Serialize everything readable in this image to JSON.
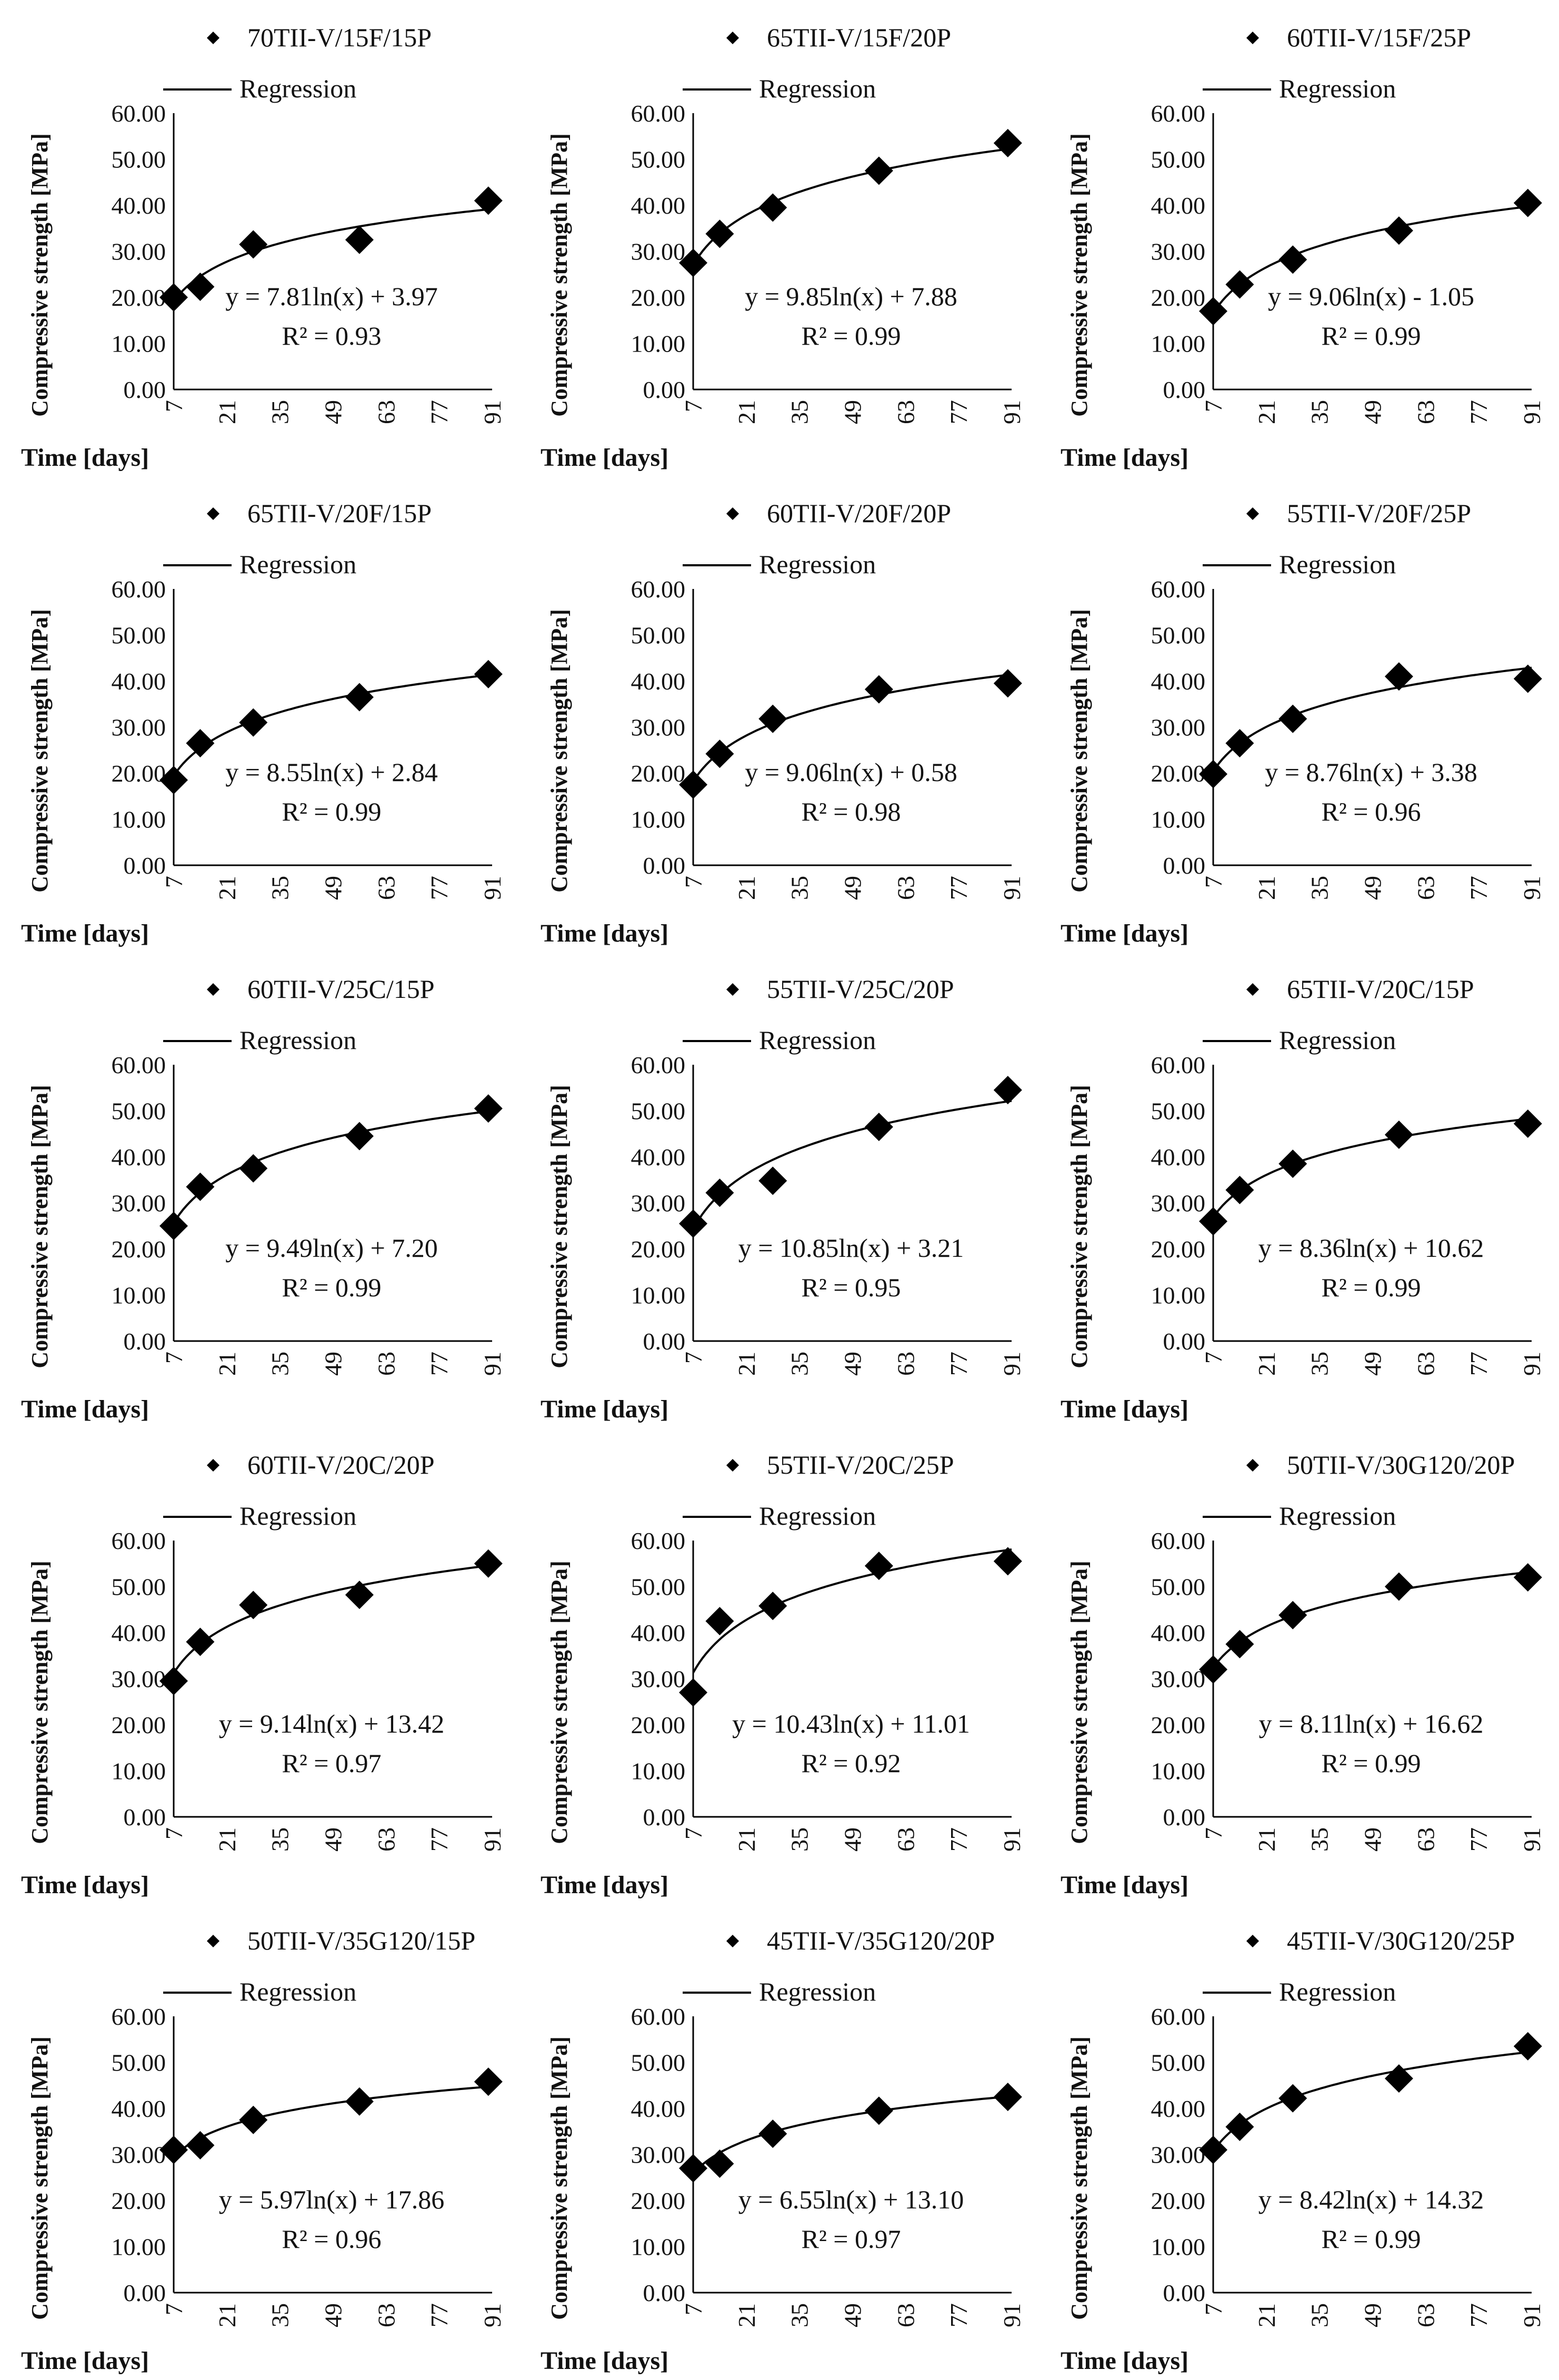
{
  "axes": {
    "ylabel": "Compressive strength [MPa]",
    "xlabel": "Time [days]",
    "yticks": [
      "0.00",
      "10.00",
      "20.00",
      "30.00",
      "40.00",
      "50.00",
      "60.00"
    ],
    "xticks": [
      "7",
      "21",
      "35",
      "49",
      "63",
      "77",
      "91"
    ],
    "regression_label": "Regression"
  },
  "colors": {
    "marker": "#000000",
    "line": "#000000",
    "axis": "#000000"
  },
  "chart_data": [
    {
      "type": "scatter",
      "title": "70TII-V/15F/15P",
      "x": [
        7,
        14,
        28,
        56,
        90
      ],
      "y": [
        20.0,
        22.3,
        31.5,
        32.5,
        41.0
      ],
      "equation": "y = 7.81ln(x) + 3.97",
      "r2": "R² = 0.93",
      "reg": {
        "a": 7.81,
        "b": 3.97
      },
      "xlim": [
        7,
        91
      ],
      "ylim": [
        0,
        60
      ]
    },
    {
      "type": "scatter",
      "title": "65TII-V/15F/20P",
      "x": [
        7,
        14,
        28,
        56,
        90
      ],
      "y": [
        27.5,
        33.8,
        39.5,
        47.5,
        53.5
      ],
      "equation": "y = 9.85ln(x) + 7.88",
      "r2": "R² = 0.99",
      "reg": {
        "a": 9.85,
        "b": 7.88
      },
      "xlim": [
        7,
        91
      ],
      "ylim": [
        0,
        60
      ]
    },
    {
      "type": "scatter",
      "title": "60TII-V/15F/25P",
      "x": [
        7,
        14,
        28,
        56,
        90
      ],
      "y": [
        17.0,
        22.8,
        28.2,
        34.5,
        40.5
      ],
      "equation": "y = 9.06ln(x) - 1.05",
      "r2": "R² = 0.99",
      "reg": {
        "a": 9.06,
        "b": -1.05
      },
      "xlim": [
        7,
        91
      ],
      "ylim": [
        0,
        60
      ]
    },
    {
      "type": "scatter",
      "title": "65TII-V/20F/15P",
      "x": [
        7,
        14,
        28,
        56,
        90
      ],
      "y": [
        18.5,
        26.5,
        31.0,
        36.5,
        41.5
      ],
      "equation": "y = 8.55ln(x) + 2.84",
      "r2": "R² = 0.99",
      "reg": {
        "a": 8.55,
        "b": 2.84
      },
      "xlim": [
        7,
        91
      ],
      "ylim": [
        0,
        60
      ]
    },
    {
      "type": "scatter",
      "title": "60TII-V/20F/20P",
      "x": [
        7,
        14,
        28,
        56,
        90
      ],
      "y": [
        17.5,
        24.2,
        31.8,
        38.2,
        39.5
      ],
      "equation": "y = 9.06ln(x) + 0.58",
      "r2": "R² = 0.98",
      "reg": {
        "a": 9.06,
        "b": 0.58
      },
      "xlim": [
        7,
        91
      ],
      "ylim": [
        0,
        60
      ]
    },
    {
      "type": "scatter",
      "title": "55TII-V/20F/25P",
      "x": [
        7,
        14,
        28,
        56,
        90
      ],
      "y": [
        19.8,
        26.5,
        31.8,
        41.0,
        40.5
      ],
      "equation": "y = 8.76ln(x) + 3.38",
      "r2": "R² = 0.96",
      "reg": {
        "a": 8.76,
        "b": 3.38
      },
      "xlim": [
        7,
        91
      ],
      "ylim": [
        0,
        60
      ]
    },
    {
      "type": "scatter",
      "title": "60TII-V/25C/15P",
      "x": [
        7,
        14,
        28,
        56,
        90
      ],
      "y": [
        25.0,
        33.5,
        37.5,
        44.5,
        50.5
      ],
      "equation": "y = 9.49ln(x) + 7.20",
      "r2": "R² = 0.99",
      "reg": {
        "a": 9.49,
        "b": 7.2
      },
      "xlim": [
        7,
        91
      ],
      "ylim": [
        0,
        60
      ]
    },
    {
      "type": "scatter",
      "title": "55TII-V/25C/20P",
      "x": [
        7,
        14,
        28,
        56,
        90
      ],
      "y": [
        25.5,
        32.2,
        34.8,
        46.5,
        54.5
      ],
      "equation": "y = 10.85ln(x) + 3.21",
      "r2": "R² = 0.95",
      "reg": {
        "a": 10.85,
        "b": 3.21
      },
      "xlim": [
        7,
        91
      ],
      "ylim": [
        0,
        60
      ]
    },
    {
      "type": "scatter",
      "title": "65TII-V/20C/15P",
      "x": [
        7,
        14,
        28,
        56,
        90
      ],
      "y": [
        26.0,
        32.8,
        38.5,
        44.8,
        47.2
      ],
      "equation": "y = 8.36ln(x) + 10.62",
      "r2": "R² = 0.99",
      "reg": {
        "a": 8.36,
        "b": 10.62
      },
      "xlim": [
        7,
        91
      ],
      "ylim": [
        0,
        60
      ]
    },
    {
      "type": "scatter",
      "title": "60TII-V/20C/20P",
      "x": [
        7,
        14,
        28,
        56,
        90
      ],
      "y": [
        29.5,
        38.0,
        46.0,
        48.2,
        55.0
      ],
      "equation": "y = 9.14ln(x) + 13.42",
      "r2": "R² = 0.97",
      "reg": {
        "a": 9.14,
        "b": 13.42
      },
      "xlim": [
        7,
        91
      ],
      "ylim": [
        0,
        60
      ]
    },
    {
      "type": "scatter",
      "title": "55TII-V/20C/25P",
      "x": [
        7,
        14,
        28,
        56,
        90
      ],
      "y": [
        27.0,
        42.5,
        45.8,
        54.5,
        55.5
      ],
      "equation": "y = 10.43ln(x) + 11.01",
      "r2": "R² = 0.92",
      "reg": {
        "a": 10.43,
        "b": 11.01
      },
      "xlim": [
        7,
        91
      ],
      "ylim": [
        0,
        60
      ]
    },
    {
      "type": "scatter",
      "title": "50TII-V/30G120/20P",
      "x": [
        7,
        14,
        28,
        56,
        90
      ],
      "y": [
        32.0,
        37.5,
        43.8,
        50.0,
        52.0
      ],
      "equation": "y = 8.11ln(x) + 16.62",
      "r2": "R² = 0.99",
      "reg": {
        "a": 8.11,
        "b": 16.62
      },
      "xlim": [
        7,
        91
      ],
      "ylim": [
        0,
        60
      ]
    },
    {
      "type": "scatter",
      "title": "50TII-V/35G120/15P",
      "x": [
        7,
        14,
        28,
        56,
        90
      ],
      "y": [
        31.0,
        32.0,
        37.5,
        41.5,
        45.8
      ],
      "equation": "y = 5.97ln(x) + 17.86",
      "r2": "R² = 0.96",
      "reg": {
        "a": 5.97,
        "b": 17.86
      },
      "xlim": [
        7,
        91
      ],
      "ylim": [
        0,
        60
      ]
    },
    {
      "type": "scatter",
      "title": "45TII-V/35G120/20P",
      "x": [
        7,
        14,
        28,
        56,
        90
      ],
      "y": [
        27.0,
        28.0,
        34.5,
        39.5,
        42.5
      ],
      "equation": "y = 6.55ln(x) + 13.10",
      "r2": "R² = 0.97",
      "reg": {
        "a": 6.55,
        "b": 13.1
      },
      "xlim": [
        7,
        91
      ],
      "ylim": [
        0,
        60
      ]
    },
    {
      "type": "scatter",
      "title": "45TII-V/30G120/25P",
      "x": [
        7,
        14,
        28,
        56,
        90
      ],
      "y": [
        31.0,
        36.0,
        42.2,
        46.5,
        53.5
      ],
      "equation": "y = 8.42ln(x) + 14.32",
      "r2": "R² = 0.99",
      "reg": {
        "a": 8.42,
        "b": 14.32
      },
      "xlim": [
        7,
        91
      ],
      "ylim": [
        0,
        60
      ]
    }
  ]
}
